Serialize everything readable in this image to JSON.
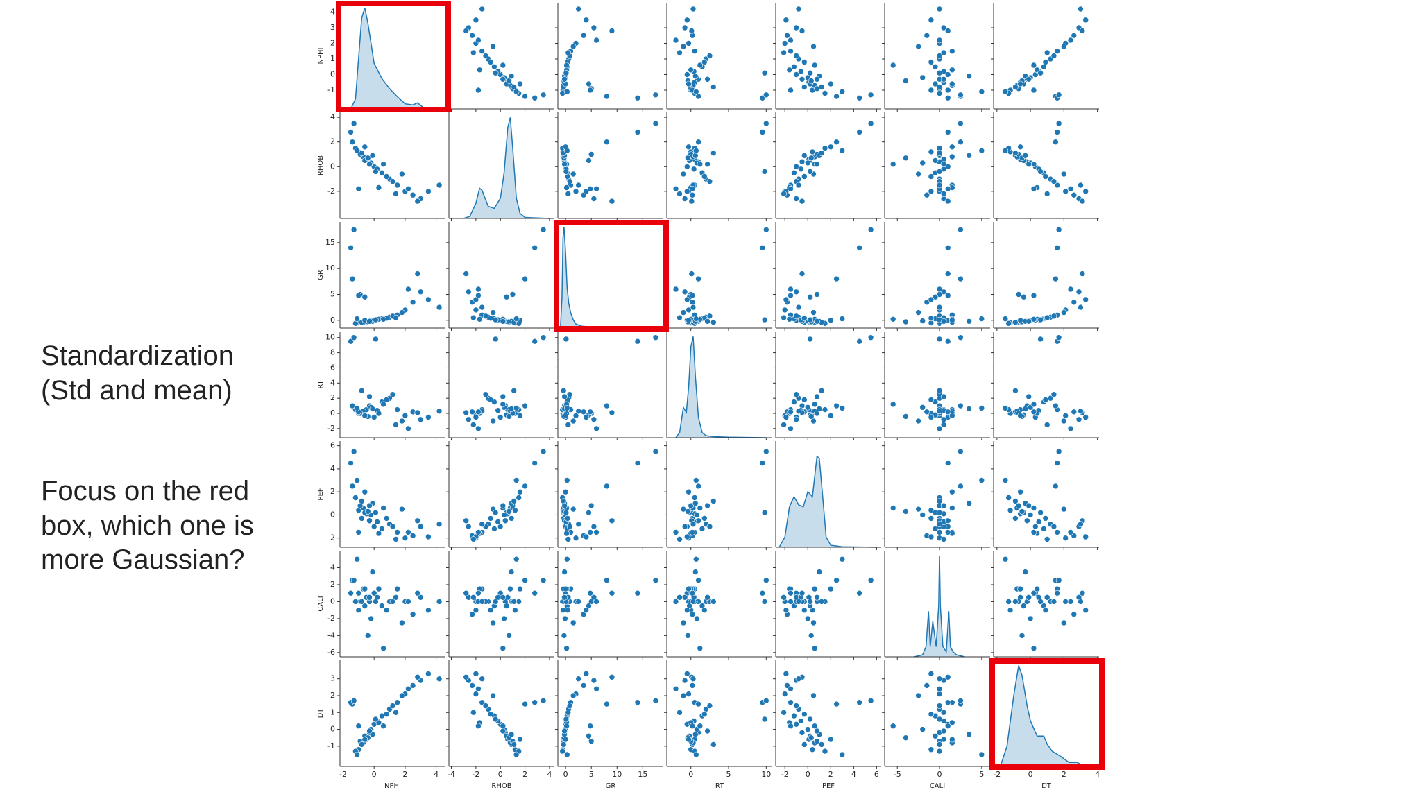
{
  "chart_data": {
    "type": "pairplot",
    "color": "#1f77b4",
    "highlight": [
      0,
      2,
      6
    ],
    "highlight_color": "#e8000b",
    "density_lim": [
      0,
      1.05
    ],
    "variables": [
      {
        "name": "NPHI",
        "lim": [
          -2.2,
          4.6
        ],
        "xticks": [
          -2,
          0,
          2,
          4
        ],
        "yticks": [
          -1,
          0,
          1,
          2,
          3,
          4
        ],
        "kde": {
          "x": [
            -1.5,
            -1.2,
            -1.0,
            -0.8,
            -0.6,
            -0.4,
            -0.2,
            0,
            0.5,
            1.0,
            1.5,
            2.0,
            2.5,
            2.8,
            3.2,
            4.0
          ],
          "density": [
            0,
            0.1,
            0.5,
            0.9,
            1.0,
            0.85,
            0.65,
            0.45,
            0.3,
            0.2,
            0.12,
            0.05,
            0.04,
            0.06,
            0.01,
            0
          ]
        }
      },
      {
        "name": "RHOB",
        "lim": [
          -4.2,
          4.4
        ],
        "xticks": [
          -4,
          -2,
          0,
          2,
          4
        ],
        "yticks": [
          -2,
          0,
          2,
          4
        ],
        "kde": {
          "x": [
            -3,
            -2.5,
            -2,
            -1.7,
            -1.5,
            -1,
            -0.5,
            0,
            0.3,
            0.6,
            0.8,
            1.0,
            1.3,
            1.6,
            2,
            3,
            4
          ],
          "density": [
            0,
            0.02,
            0.15,
            0.3,
            0.28,
            0.12,
            0.1,
            0.2,
            0.45,
            0.9,
            1.0,
            0.7,
            0.2,
            0.05,
            0.01,
            0.005,
            0
          ]
        }
      },
      {
        "name": "GR",
        "lim": [
          -1.5,
          19
        ],
        "xticks": [
          0,
          5,
          10,
          15
        ],
        "yticks": [
          0,
          5,
          10,
          15
        ],
        "kde": {
          "x": [
            -1,
            -0.7,
            -0.5,
            -0.3,
            0,
            0.3,
            0.6,
            1,
            1.5,
            2,
            3,
            5,
            10,
            18
          ],
          "density": [
            0,
            0.3,
            0.9,
            1.0,
            0.75,
            0.4,
            0.25,
            0.15,
            0.08,
            0.04,
            0.02,
            0.01,
            0.002,
            0
          ]
        }
      },
      {
        "name": "RT",
        "lim": [
          -3.2,
          10.8
        ],
        "xticks": [
          0,
          5,
          10
        ],
        "yticks": [
          -2,
          0,
          2,
          4,
          6,
          8,
          10
        ],
        "kde": {
          "x": [
            -2,
            -1.5,
            -1,
            -0.6,
            -0.3,
            0,
            0.3,
            0.6,
            1,
            1.5,
            2,
            3,
            5,
            10
          ],
          "density": [
            0,
            0.05,
            0.3,
            0.25,
            0.5,
            0.9,
            1.0,
            0.6,
            0.2,
            0.05,
            0.02,
            0.01,
            0.005,
            0
          ]
        }
      },
      {
        "name": "PEF",
        "lim": [
          -2.8,
          6.4
        ],
        "xticks": [
          -2,
          0,
          2,
          4,
          6
        ],
        "yticks": [
          -2,
          0,
          2,
          4,
          6
        ],
        "kde": {
          "x": [
            -2.5,
            -2,
            -1.6,
            -1.2,
            -0.8,
            -0.4,
            0,
            0.4,
            0.8,
            1.0,
            1.3,
            1.6,
            2,
            3,
            6
          ],
          "density": [
            0,
            0.1,
            0.4,
            0.5,
            0.42,
            0.4,
            0.55,
            0.5,
            0.9,
            0.88,
            0.5,
            0.1,
            0.02,
            0.005,
            0
          ]
        }
      },
      {
        "name": "CALI",
        "lim": [
          -6.5,
          6
        ],
        "xticks": [
          -5,
          0,
          5
        ],
        "yticks": [
          -6,
          -4,
          -2,
          0,
          2,
          4
        ],
        "kde": {
          "x": [
            -3,
            -2,
            -1.6,
            -1.3,
            -1.1,
            -0.8,
            -0.4,
            -0.1,
            0,
            0.1,
            0.4,
            0.8,
            1.1,
            1.3,
            1.6,
            2,
            3
          ],
          "density": [
            0,
            0.02,
            0.1,
            0.45,
            0.1,
            0.35,
            0.1,
            0.5,
            1.0,
            0.5,
            0.1,
            0.05,
            0.45,
            0.1,
            0.05,
            0.02,
            0
          ]
        }
      },
      {
        "name": "DT",
        "lim": [
          -2.2,
          4.1
        ],
        "xticks": [
          -2,
          0,
          2,
          4
        ],
        "yticks": [
          -1,
          0,
          1,
          2,
          3
        ],
        "kde": {
          "x": [
            -1.8,
            -1.4,
            -1.0,
            -0.7,
            -0.5,
            -0.2,
            0,
            0.4,
            0.8,
            1.0,
            1.3,
            1.8,
            2.3,
            2.8,
            3.2
          ],
          "density": [
            0,
            0.2,
            0.7,
            1.0,
            0.9,
            0.6,
            0.45,
            0.3,
            0.3,
            0.22,
            0.15,
            0.1,
            0.04,
            0.04,
            0
          ]
        }
      }
    ],
    "rows": [
      [
        -0.8,
        0.9,
        -0.4,
        0.2,
        -0.3,
        0.0,
        -0.9
      ],
      [
        -0.5,
        0.6,
        -0.3,
        0.5,
        0.1,
        0.5,
        -0.6
      ],
      [
        -1.0,
        1.2,
        -0.5,
        0.0,
        0.4,
        -1.0,
        -1.2
      ],
      [
        -0.3,
        0.4,
        -0.2,
        1.0,
        -0.5,
        0.0,
        -0.2
      ],
      [
        0.0,
        0.0,
        0.0,
        -0.5,
        -1.0,
        1.0,
        0.3
      ],
      [
        0.5,
        -0.5,
        0.3,
        1.5,
        -1.2,
        -0.5,
        0.8
      ],
      [
        1.0,
        -1.0,
        0.6,
        2.0,
        -0.8,
        0.0,
        1.2
      ],
      [
        1.5,
        -1.5,
        1.0,
        0.5,
        -1.5,
        1.5,
        1.6
      ],
      [
        2.0,
        -2.0,
        2.0,
        -0.3,
        -2.0,
        0.0,
        2.1
      ],
      [
        2.5,
        -2.3,
        3.5,
        0.2,
        -1.8,
        -1.5,
        2.6
      ],
      [
        3.0,
        -2.6,
        5.5,
        -0.8,
        -1.0,
        0.5,
        2.9
      ],
      [
        -0.7,
        0.8,
        -0.4,
        0.3,
        0.6,
        1.5,
        -0.8
      ],
      [
        -0.9,
        1.0,
        5.0,
        0.0,
        0.8,
        0.0,
        -0.7
      ],
      [
        -0.6,
        0.5,
        4.5,
        -0.2,
        0.2,
        -0.5,
        -0.4
      ],
      [
        -1.2,
        1.5,
        -0.6,
        0.5,
        1.5,
        0.0,
        -1.3
      ],
      [
        -1.4,
        2.0,
        8.0,
        1.0,
        2.5,
        2.5,
        1.5
      ],
      [
        -1.5,
        2.8,
        14.0,
        9.5,
        4.5,
        1.0,
        1.6
      ],
      [
        -1.3,
        3.5,
        17.5,
        10.0,
        5.5,
        2.5,
        1.7
      ],
      [
        -0.2,
        0.3,
        -0.1,
        0.8,
        0.0,
        -2.0,
        0.0
      ],
      [
        0.2,
        -0.2,
        0.1,
        0.4,
        -0.6,
        0.5,
        0.5
      ],
      [
        0.8,
        -0.8,
        0.4,
        1.8,
        -0.3,
        -1.0,
        0.9
      ],
      [
        1.2,
        -1.2,
        0.8,
        2.5,
        -1.0,
        0.0,
        1.4
      ],
      [
        0.3,
        -1.7,
        0.2,
        0.0,
        -1.6,
        1.5,
        0.4
      ],
      [
        -0.4,
        0.7,
        -0.3,
        -0.4,
        0.3,
        -4.0,
        -0.5
      ],
      [
        -0.1,
        0.9,
        -0.2,
        0.6,
        1.0,
        3.5,
        -0.3
      ],
      [
        -0.8,
        1.1,
        -0.4,
        3.0,
        1.2,
        0.0,
        -0.9
      ],
      [
        1.8,
        -0.6,
        1.5,
        -1.0,
        0.5,
        -2.5,
        2.0
      ],
      [
        2.2,
        -1.8,
        6.0,
        -2.0,
        -1.5,
        0.0,
        2.4
      ],
      [
        2.8,
        -2.8,
        9.0,
        0.1,
        -0.5,
        1.0,
        3.1
      ],
      [
        3.5,
        -2.0,
        4.0,
        -0.5,
        -1.9,
        -1.0,
        3.3
      ],
      [
        4.2,
        -1.5,
        2.5,
        0.3,
        -0.8,
        0.0,
        3.0
      ],
      [
        1.4,
        -2.2,
        0.5,
        -1.5,
        -2.1,
        0.5,
        1.0
      ],
      [
        -1.0,
        -1.8,
        4.8,
        0.2,
        -1.5,
        1.0,
        0.2
      ],
      [
        -0.6,
        1.6,
        0.0,
        -0.3,
        2.0,
        1.5,
        -0.6
      ],
      [
        0.6,
        0.2,
        0.2,
        1.2,
        0.6,
        -5.5,
        0.2
      ],
      [
        -1.1,
        1.3,
        0.3,
        0.7,
        3.0,
        5.0,
        -1.5
      ],
      [
        0.1,
        -0.4,
        0.1,
        9.8,
        0.2,
        0.0,
        0.6
      ],
      [
        -0.3,
        0.2,
        -0.2,
        2.2,
        0.8,
        0.5,
        -0.1
      ]
    ]
  },
  "annotations": [
    {
      "lines": [
        "Standardization",
        "(Std and mean)"
      ],
      "color": "#1a9a87"
    },
    {
      "lines": [
        "Focus on the red",
        "box, which one is",
        "more Gaussian?"
      ],
      "color": "#e8140c"
    }
  ]
}
